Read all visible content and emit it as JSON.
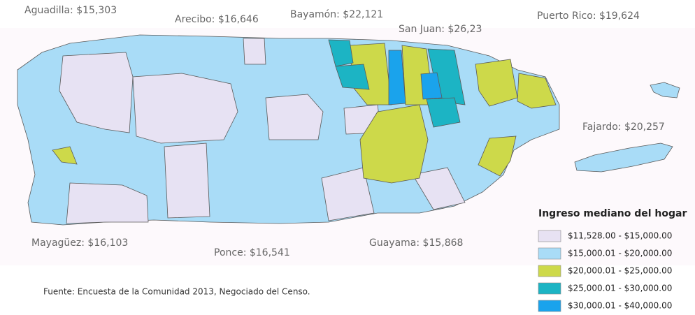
{
  "map": {
    "labels": [
      "Aguadilla: $15,303",
      "Arecibo: $16,646",
      "Bayamón: $22,121",
      "San Juan: $26,23",
      "Puerto Rico: $19,624",
      "Fajardo: $20,257",
      "Mayagüez: $16,103",
      "Ponce: $16,541",
      "Guayama: $15,868"
    ],
    "legend": {
      "title": "Ingreso mediano del hogar",
      "items": [
        {
          "label": "$11,528.00 - $15,000.00",
          "color": "#e7e2f3"
        },
        {
          "label": "$15,000.01 - $20,000.00",
          "color": "#a9dcf7"
        },
        {
          "label": "$20,000.01 - $25,000.00",
          "color": "#cdd94a"
        },
        {
          "label": "$25,000.01 - $30,000.00",
          "color": "#1cb4c4"
        },
        {
          "label": "$30,000.01 - $40,000.00",
          "color": "#1aa3ec"
        }
      ]
    },
    "source": "Fuente: Encuesta de la Comunidad 2013, Negociado del Censo."
  }
}
